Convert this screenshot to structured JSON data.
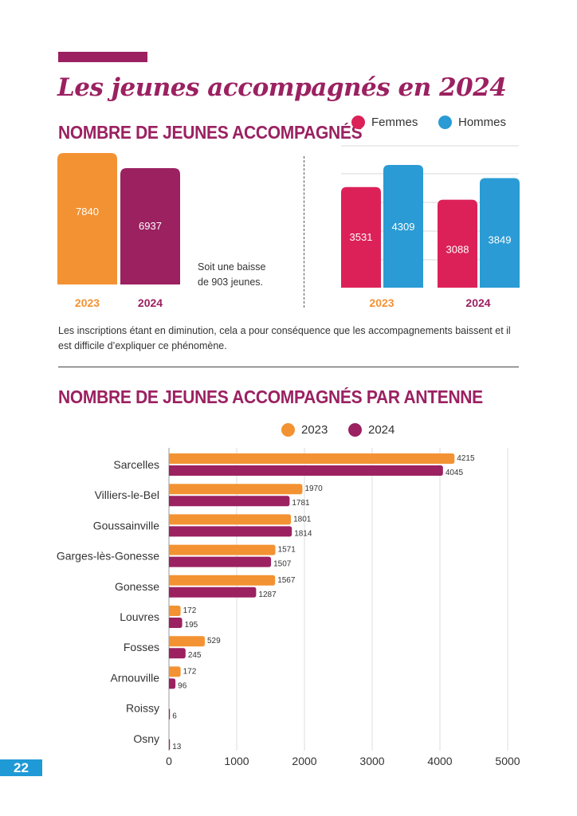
{
  "title": "Les jeunes accompagnés en 2024",
  "page_number": "22",
  "colors": {
    "orange": "#f39232",
    "purple": "#9b2161",
    "pink": "#dc2158",
    "blue": "#2a9bd4"
  },
  "section1": {
    "title": "NOMBRE DE JEUNES ACCOMPAGNÉS",
    "note_line1": "Soit une baisse",
    "note_line2": "de 903 jeunes.",
    "description": "Les inscriptions étant en diminution, cela a pour conséquence que les accompagnements baissent et il est difficile d’expliquer ce phénomène.",
    "legend": {
      "femmes": "Femmes",
      "hommes": "Hommes"
    }
  },
  "section2": {
    "title": "NOMBRE DE JEUNES ACCOMPAGNÉS PAR ANTENNE",
    "legend": {
      "y2023": "2023",
      "y2024": "2024"
    }
  },
  "chart_data": [
    {
      "type": "bar",
      "title": "NOMBRE DE JEUNES ACCOMPAGNÉS",
      "categories": [
        "2023",
        "2024"
      ],
      "values": [
        7840,
        6937
      ],
      "colors": [
        "#f39232",
        "#9b2161"
      ]
    },
    {
      "type": "bar",
      "categories": [
        "2023",
        "2024"
      ],
      "series": [
        {
          "name": "Femmes",
          "values": [
            3531,
            3088
          ],
          "color": "#dc2158"
        },
        {
          "name": "Hommes",
          "values": [
            4309,
            3849
          ],
          "color": "#2a9bd4"
        }
      ],
      "ylim": [
        0,
        5000
      ],
      "grid": true
    },
    {
      "type": "bar",
      "orientation": "horizontal",
      "title": "NOMBRE DE JEUNES ACCOMPAGNÉS PAR ANTENNE",
      "categories": [
        "Sarcelles",
        "Villiers-le-Bel",
        "Goussainville",
        "Garges-lès-Gonesse",
        "Gonesse",
        "Louvres",
        "Fosses",
        "Arnouville",
        "Roissy",
        "Osny"
      ],
      "series": [
        {
          "name": "2023",
          "values": [
            4215,
            1970,
            1801,
            1571,
            1567,
            172,
            529,
            172,
            null,
            null
          ],
          "color": "#f39232"
        },
        {
          "name": "2024",
          "values": [
            4045,
            1781,
            1814,
            1507,
            1287,
            195,
            245,
            96,
            6,
            13
          ],
          "color": "#9b2161"
        }
      ],
      "xlim": [
        0,
        5000
      ],
      "xticks": [
        0,
        1000,
        2000,
        3000,
        4000,
        5000
      ],
      "grid": true
    }
  ]
}
